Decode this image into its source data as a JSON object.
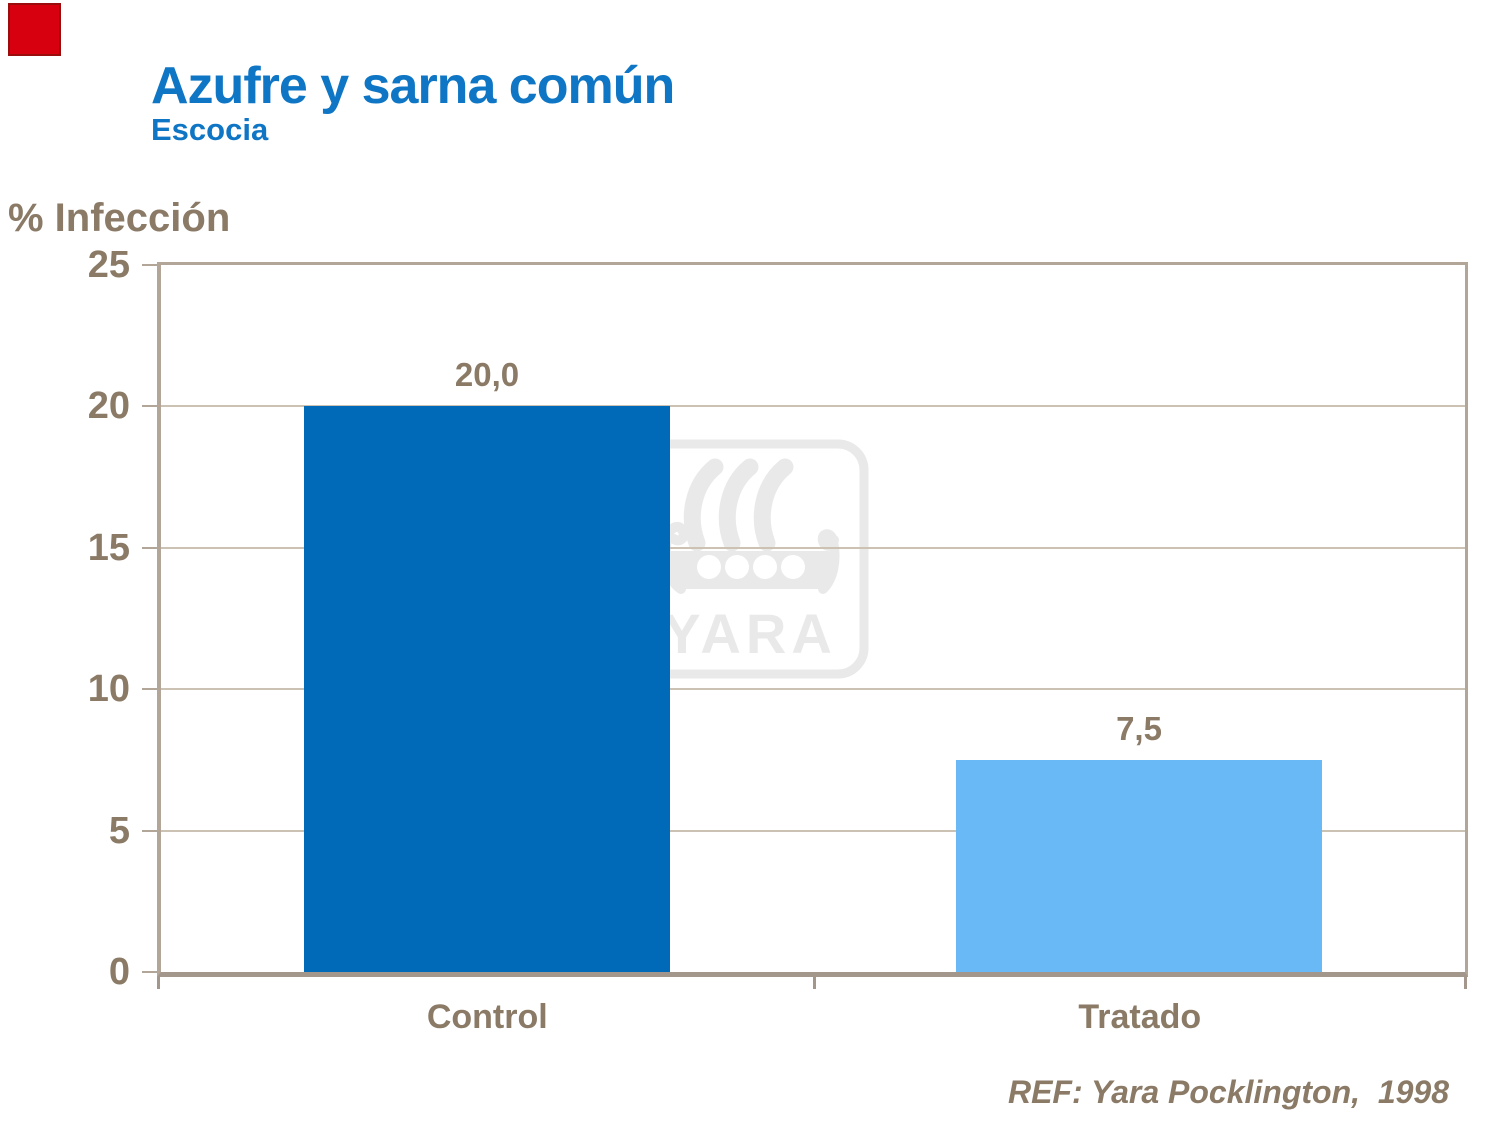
{
  "slide": {
    "title": "Azufre y sarna común",
    "subtitle": "Escocia",
    "reference": "REF: Yara Pocklington,  1998"
  },
  "watermark": {
    "brand": "YARA"
  },
  "colors": {
    "title_blue": "#0E76C4",
    "text_brown": "#8A7A66",
    "axis_tan": "#B2A698",
    "axis_dark_tan": "#A3968A",
    "grid_tan": "#CCC2B4",
    "corner_red": "#D7000F",
    "corner_red_edge": "#9B0D0D",
    "watermark_gray": "#E9E9E9",
    "bar_dark_blue": "#0069B8",
    "bar_light_blue": "#69B9F7"
  },
  "chart_data": {
    "type": "bar",
    "title": "Azufre y sarna común",
    "subtitle": "Escocia",
    "xlabel": "",
    "ylabel": "% Infección",
    "categories": [
      "Control",
      "Tratado"
    ],
    "values": [
      20.0,
      7.5
    ],
    "value_labels": [
      "20,0",
      "7,5"
    ],
    "bar_colors": [
      "#0069B8",
      "#69B9F7"
    ],
    "ylim": [
      0,
      25
    ],
    "yticks": [
      0,
      5,
      10,
      15,
      20,
      25
    ],
    "grid": true,
    "legend": "none",
    "annotation": "REF: Yara Pocklington,  1998"
  }
}
